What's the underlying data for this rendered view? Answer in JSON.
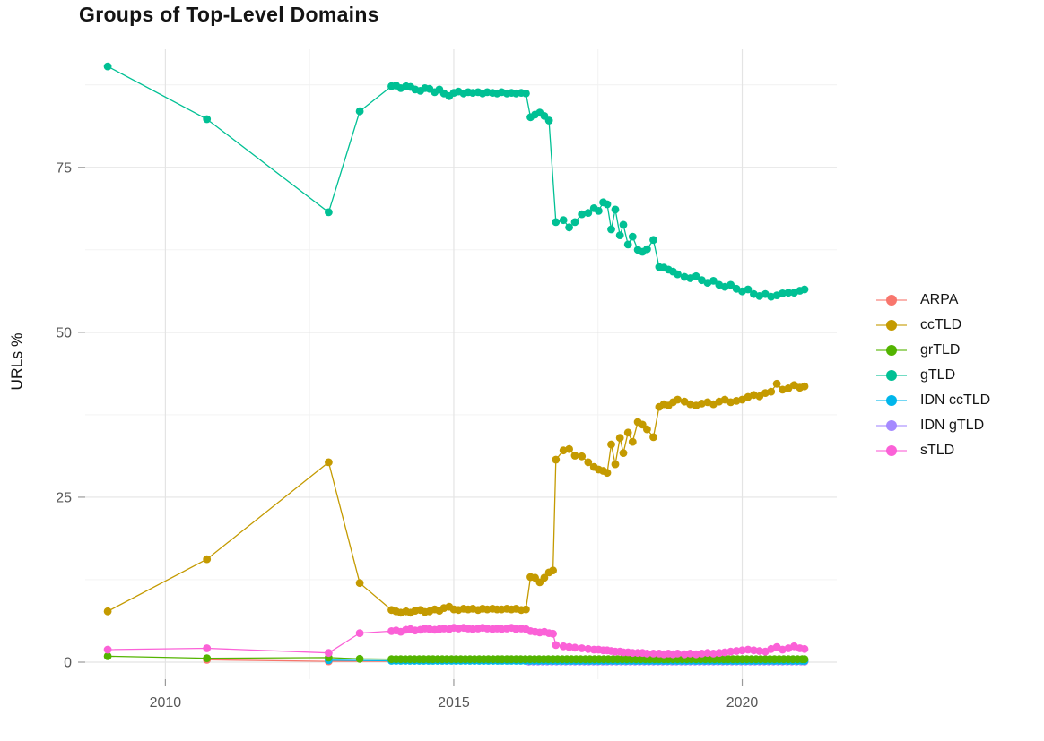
{
  "chart_data": {
    "type": "line",
    "title": "Groups of Top-Level Domains",
    "ylabel": "URLs %",
    "xlabel": "",
    "x_ticks": [
      2010,
      2015,
      2020
    ],
    "x_minor_ticks": [
      2012.5,
      2017.5
    ],
    "y_ticks": [
      0,
      25,
      50,
      75
    ],
    "y_minor_ticks": [
      12.5,
      37.5,
      62.5,
      87.5
    ],
    "xlim": [
      2008.61,
      2021.64
    ],
    "ylim": [
      -2.58,
      92.9
    ],
    "grid": true,
    "legend_position": "right",
    "draw_order": [
      "ARPA",
      "IDN gTLD",
      "IDN ccTLD",
      "grTLD",
      "ccTLD",
      "gTLD",
      "sTLD"
    ],
    "series": [
      {
        "name": "ARPA",
        "color": "#F8766D",
        "points": [
          [
            2010.72,
            0.35
          ],
          [
            2012.83,
            0.12
          ],
          [
            2016.3,
            0.1
          ],
          [
            2021.08,
            0.08
          ]
        ]
      },
      {
        "name": "ccTLD",
        "color": "#C49A00",
        "points": [
          [
            2009.0,
            7.7
          ],
          [
            2010.72,
            15.6
          ],
          [
            2012.83,
            30.3
          ],
          [
            2013.37,
            12.0
          ],
          [
            2013.92,
            7.9
          ],
          [
            2014.0,
            7.7
          ],
          [
            2014.08,
            7.5
          ],
          [
            2014.17,
            7.7
          ],
          [
            2014.25,
            7.5
          ],
          [
            2014.33,
            7.8
          ],
          [
            2014.42,
            7.9
          ],
          [
            2014.5,
            7.6
          ],
          [
            2014.58,
            7.7
          ],
          [
            2014.67,
            8.0
          ],
          [
            2014.75,
            7.8
          ],
          [
            2014.83,
            8.2
          ],
          [
            2014.92,
            8.4
          ],
          [
            2015.0,
            8.0
          ],
          [
            2015.08,
            7.9
          ],
          [
            2015.17,
            8.1
          ],
          [
            2015.25,
            8.0
          ],
          [
            2015.33,
            8.1
          ],
          [
            2015.42,
            7.9
          ],
          [
            2015.5,
            8.1
          ],
          [
            2015.58,
            8.0
          ],
          [
            2015.67,
            8.1
          ],
          [
            2015.75,
            8.0
          ],
          [
            2015.83,
            8.0
          ],
          [
            2015.92,
            8.1
          ],
          [
            2016.0,
            8.0
          ],
          [
            2016.08,
            8.1
          ],
          [
            2016.17,
            7.9
          ],
          [
            2016.25,
            8.0
          ],
          [
            2016.33,
            12.9
          ],
          [
            2016.41,
            12.8
          ],
          [
            2016.49,
            12.1
          ],
          [
            2016.57,
            12.8
          ],
          [
            2016.65,
            13.6
          ],
          [
            2016.72,
            13.9
          ],
          [
            2016.77,
            30.7
          ],
          [
            2016.9,
            32.1
          ],
          [
            2017.0,
            32.3
          ],
          [
            2017.1,
            31.3
          ],
          [
            2017.22,
            31.2
          ],
          [
            2017.33,
            30.3
          ],
          [
            2017.43,
            29.6
          ],
          [
            2017.51,
            29.2
          ],
          [
            2017.59,
            29.0
          ],
          [
            2017.66,
            28.7
          ],
          [
            2017.73,
            33.0
          ],
          [
            2017.8,
            30.0
          ],
          [
            2017.88,
            34.0
          ],
          [
            2017.94,
            31.7
          ],
          [
            2018.02,
            34.8
          ],
          [
            2018.1,
            33.4
          ],
          [
            2018.19,
            36.4
          ],
          [
            2018.27,
            36.0
          ],
          [
            2018.35,
            35.3
          ],
          [
            2018.46,
            34.1
          ],
          [
            2018.56,
            38.7
          ],
          [
            2018.64,
            39.1
          ],
          [
            2018.72,
            38.9
          ],
          [
            2018.8,
            39.4
          ],
          [
            2018.88,
            39.8
          ],
          [
            2019.0,
            39.5
          ],
          [
            2019.1,
            39.1
          ],
          [
            2019.2,
            38.9
          ],
          [
            2019.3,
            39.2
          ],
          [
            2019.4,
            39.4
          ],
          [
            2019.5,
            39.1
          ],
          [
            2019.6,
            39.5
          ],
          [
            2019.7,
            39.8
          ],
          [
            2019.8,
            39.4
          ],
          [
            2019.9,
            39.6
          ],
          [
            2020.0,
            39.8
          ],
          [
            2020.1,
            40.2
          ],
          [
            2020.2,
            40.5
          ],
          [
            2020.3,
            40.3
          ],
          [
            2020.4,
            40.8
          ],
          [
            2020.5,
            41.0
          ],
          [
            2020.6,
            42.2
          ],
          [
            2020.7,
            41.3
          ],
          [
            2020.8,
            41.5
          ],
          [
            2020.9,
            42.0
          ],
          [
            2021.0,
            41.6
          ],
          [
            2021.08,
            41.8
          ]
        ]
      },
      {
        "name": "grTLD",
        "color": "#53B400",
        "points": [
          [
            2009.0,
            0.9
          ],
          [
            2010.72,
            0.6
          ],
          [
            2012.83,
            0.7
          ],
          [
            2013.37,
            0.5
          ]
        ],
        "flat": {
          "from": 2013.92,
          "to": 2021.08,
          "step": 0.08,
          "value": 0.45
        }
      },
      {
        "name": "gTLD",
        "color": "#00C094",
        "points": [
          [
            2009.0,
            90.3
          ],
          [
            2010.72,
            82.3
          ],
          [
            2012.83,
            68.2
          ],
          [
            2013.37,
            83.5
          ],
          [
            2013.92,
            87.3
          ],
          [
            2014.0,
            87.4
          ],
          [
            2014.08,
            87.0
          ],
          [
            2014.17,
            87.3
          ],
          [
            2014.25,
            87.2
          ],
          [
            2014.33,
            86.8
          ],
          [
            2014.42,
            86.6
          ],
          [
            2014.5,
            87.0
          ],
          [
            2014.58,
            86.9
          ],
          [
            2014.67,
            86.4
          ],
          [
            2014.75,
            86.8
          ],
          [
            2014.83,
            86.2
          ],
          [
            2014.92,
            85.8
          ],
          [
            2015.0,
            86.3
          ],
          [
            2015.08,
            86.5
          ],
          [
            2015.17,
            86.2
          ],
          [
            2015.25,
            86.4
          ],
          [
            2015.33,
            86.3
          ],
          [
            2015.42,
            86.4
          ],
          [
            2015.5,
            86.2
          ],
          [
            2015.58,
            86.4
          ],
          [
            2015.67,
            86.3
          ],
          [
            2015.75,
            86.2
          ],
          [
            2015.83,
            86.4
          ],
          [
            2015.92,
            86.2
          ],
          [
            2016.0,
            86.3
          ],
          [
            2016.08,
            86.2
          ],
          [
            2016.17,
            86.3
          ],
          [
            2016.25,
            86.2
          ],
          [
            2016.33,
            82.6
          ],
          [
            2016.41,
            83.0
          ],
          [
            2016.49,
            83.3
          ],
          [
            2016.57,
            82.8
          ],
          [
            2016.65,
            82.1
          ],
          [
            2016.77,
            66.7
          ],
          [
            2016.9,
            67.0
          ],
          [
            2017.0,
            65.9
          ],
          [
            2017.1,
            66.7
          ],
          [
            2017.22,
            67.9
          ],
          [
            2017.33,
            68.1
          ],
          [
            2017.43,
            68.8
          ],
          [
            2017.51,
            68.4
          ],
          [
            2017.59,
            69.7
          ],
          [
            2017.66,
            69.4
          ],
          [
            2017.73,
            65.6
          ],
          [
            2017.8,
            68.6
          ],
          [
            2017.88,
            64.7
          ],
          [
            2017.94,
            66.3
          ],
          [
            2018.02,
            63.3
          ],
          [
            2018.1,
            64.5
          ],
          [
            2018.19,
            62.5
          ],
          [
            2018.27,
            62.2
          ],
          [
            2018.35,
            62.6
          ],
          [
            2018.46,
            64.0
          ],
          [
            2018.56,
            59.9
          ],
          [
            2018.64,
            59.8
          ],
          [
            2018.72,
            59.5
          ],
          [
            2018.8,
            59.2
          ],
          [
            2018.88,
            58.8
          ],
          [
            2019.0,
            58.4
          ],
          [
            2019.1,
            58.2
          ],
          [
            2019.2,
            58.5
          ],
          [
            2019.3,
            57.9
          ],
          [
            2019.4,
            57.5
          ],
          [
            2019.5,
            57.8
          ],
          [
            2019.6,
            57.2
          ],
          [
            2019.7,
            56.9
          ],
          [
            2019.8,
            57.2
          ],
          [
            2019.9,
            56.6
          ],
          [
            2020.0,
            56.2
          ],
          [
            2020.1,
            56.5
          ],
          [
            2020.2,
            55.8
          ],
          [
            2020.3,
            55.5
          ],
          [
            2020.4,
            55.8
          ],
          [
            2020.5,
            55.4
          ],
          [
            2020.6,
            55.6
          ],
          [
            2020.7,
            55.9
          ],
          [
            2020.8,
            56.0
          ],
          [
            2020.9,
            56.0
          ],
          [
            2021.0,
            56.3
          ],
          [
            2021.08,
            56.5
          ]
        ]
      },
      {
        "name": "IDN ccTLD",
        "color": "#00B6EB",
        "points": [
          [
            2012.83,
            0.3
          ]
        ],
        "flat": {
          "from": 2013.92,
          "to": 2021.08,
          "step": 0.08,
          "value": 0.2
        }
      },
      {
        "name": "IDN gTLD",
        "color": "#A58AFF",
        "points": [],
        "flat": {
          "from": 2016.3,
          "to": 2021.08,
          "step": 0.08,
          "value": 0.1
        }
      },
      {
        "name": "sTLD",
        "color": "#FB61D7",
        "points": [
          [
            2009.0,
            1.9
          ],
          [
            2010.72,
            2.1
          ],
          [
            2012.83,
            1.4
          ],
          [
            2013.37,
            4.4
          ],
          [
            2013.92,
            4.7
          ],
          [
            2014.0,
            4.8
          ],
          [
            2014.08,
            4.6
          ],
          [
            2014.17,
            4.9
          ],
          [
            2014.25,
            5.0
          ],
          [
            2014.33,
            4.8
          ],
          [
            2014.42,
            4.9
          ],
          [
            2014.5,
            5.1
          ],
          [
            2014.58,
            5.0
          ],
          [
            2014.67,
            4.9
          ],
          [
            2014.75,
            5.0
          ],
          [
            2014.83,
            5.1
          ],
          [
            2014.92,
            5.0
          ],
          [
            2015.0,
            5.2
          ],
          [
            2015.08,
            5.1
          ],
          [
            2015.17,
            5.2
          ],
          [
            2015.25,
            5.1
          ],
          [
            2015.33,
            5.0
          ],
          [
            2015.42,
            5.1
          ],
          [
            2015.5,
            5.2
          ],
          [
            2015.58,
            5.1
          ],
          [
            2015.67,
            5.0
          ],
          [
            2015.75,
            5.1
          ],
          [
            2015.83,
            5.0
          ],
          [
            2015.92,
            5.1
          ],
          [
            2016.0,
            5.2
          ],
          [
            2016.08,
            5.0
          ],
          [
            2016.17,
            5.1
          ],
          [
            2016.25,
            5.0
          ],
          [
            2016.33,
            4.7
          ],
          [
            2016.41,
            4.6
          ],
          [
            2016.49,
            4.5
          ],
          [
            2016.57,
            4.6
          ],
          [
            2016.65,
            4.4
          ],
          [
            2016.72,
            4.3
          ],
          [
            2016.77,
            2.6
          ],
          [
            2016.9,
            2.4
          ],
          [
            2017.0,
            2.3
          ],
          [
            2017.1,
            2.2
          ],
          [
            2017.22,
            2.1
          ],
          [
            2017.33,
            2.0
          ],
          [
            2017.43,
            1.9
          ],
          [
            2017.51,
            1.9
          ],
          [
            2017.59,
            1.8
          ],
          [
            2017.66,
            1.8
          ],
          [
            2017.73,
            1.7
          ],
          [
            2017.8,
            1.6
          ],
          [
            2017.88,
            1.6
          ],
          [
            2017.94,
            1.5
          ],
          [
            2018.02,
            1.5
          ],
          [
            2018.1,
            1.4
          ],
          [
            2018.19,
            1.4
          ],
          [
            2018.27,
            1.4
          ],
          [
            2018.35,
            1.3
          ],
          [
            2018.46,
            1.3
          ],
          [
            2018.56,
            1.3
          ],
          [
            2018.64,
            1.2
          ],
          [
            2018.72,
            1.3
          ],
          [
            2018.8,
            1.2
          ],
          [
            2018.88,
            1.3
          ],
          [
            2019.0,
            1.2
          ],
          [
            2019.1,
            1.3
          ],
          [
            2019.2,
            1.2
          ],
          [
            2019.3,
            1.3
          ],
          [
            2019.4,
            1.4
          ],
          [
            2019.5,
            1.3
          ],
          [
            2019.6,
            1.4
          ],
          [
            2019.7,
            1.5
          ],
          [
            2019.8,
            1.6
          ],
          [
            2019.9,
            1.7
          ],
          [
            2020.0,
            1.8
          ],
          [
            2020.1,
            1.9
          ],
          [
            2020.2,
            1.8
          ],
          [
            2020.3,
            1.7
          ],
          [
            2020.4,
            1.6
          ],
          [
            2020.5,
            2.0
          ],
          [
            2020.6,
            2.3
          ],
          [
            2020.7,
            1.9
          ],
          [
            2020.8,
            2.1
          ],
          [
            2020.9,
            2.4
          ],
          [
            2021.0,
            2.1
          ],
          [
            2021.08,
            2.0
          ]
        ]
      }
    ]
  }
}
